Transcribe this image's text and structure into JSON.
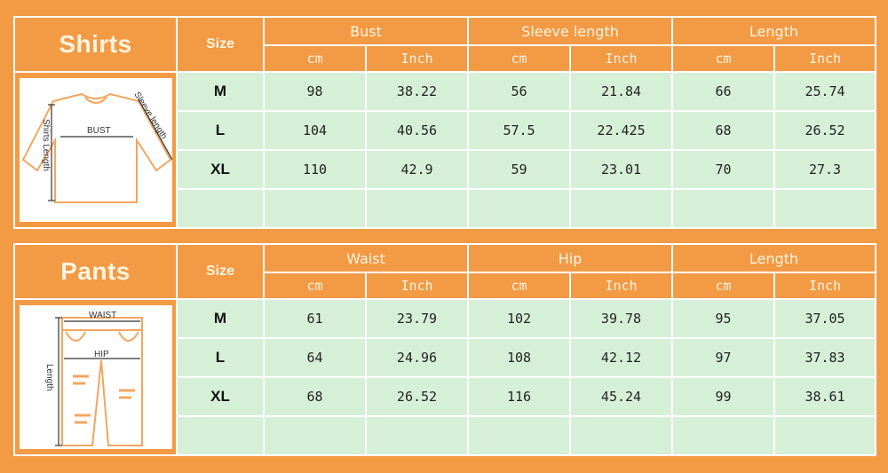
{
  "shirts": {
    "title": "Shirts",
    "size_label": "Size",
    "groups": [
      "Bust",
      "Sleeve length",
      "Length"
    ],
    "units": [
      "cm",
      "Inch",
      "cm",
      "Inch",
      "cm",
      "Inch"
    ],
    "diagram": {
      "bust": "BUST",
      "sleeve": "Sleeve length",
      "length": "Shirts Length"
    },
    "rows": [
      {
        "size": "M",
        "values": [
          "98",
          "38.22",
          "56",
          "21.84",
          "66",
          "25.74"
        ]
      },
      {
        "size": "L",
        "values": [
          "104",
          "40.56",
          "57.5",
          "22.425",
          "68",
          "26.52"
        ]
      },
      {
        "size": "XL",
        "values": [
          "110",
          "42.9",
          "59",
          "23.01",
          "70",
          "27.3"
        ]
      },
      {
        "size": "",
        "values": [
          "",
          "",
          "",
          "",
          "",
          ""
        ]
      }
    ]
  },
  "pants": {
    "title": "Pants",
    "size_label": "Size",
    "groups": [
      "Waist",
      "Hip",
      "Length"
    ],
    "units": [
      "cm",
      "Inch",
      "cm",
      "Inch",
      "cm",
      "Inch"
    ],
    "diagram": {
      "waist": "WAIST",
      "hip": "HIP",
      "length": "Length"
    },
    "rows": [
      {
        "size": "M",
        "values": [
          "61",
          "23.79",
          "102",
          "39.78",
          "95",
          "37.05"
        ]
      },
      {
        "size": "L",
        "values": [
          "64",
          "24.96",
          "108",
          "42.12",
          "97",
          "37.83"
        ]
      },
      {
        "size": "XL",
        "values": [
          "68",
          "26.52",
          "116",
          "45.24",
          "99",
          "38.61"
        ]
      },
      {
        "size": "",
        "values": [
          "",
          "",
          "",
          "",
          "",
          ""
        ]
      }
    ]
  },
  "colors": {
    "orange": "#F39A45",
    "green": "#D6F0D8",
    "header_text": "#FFF4E0"
  }
}
